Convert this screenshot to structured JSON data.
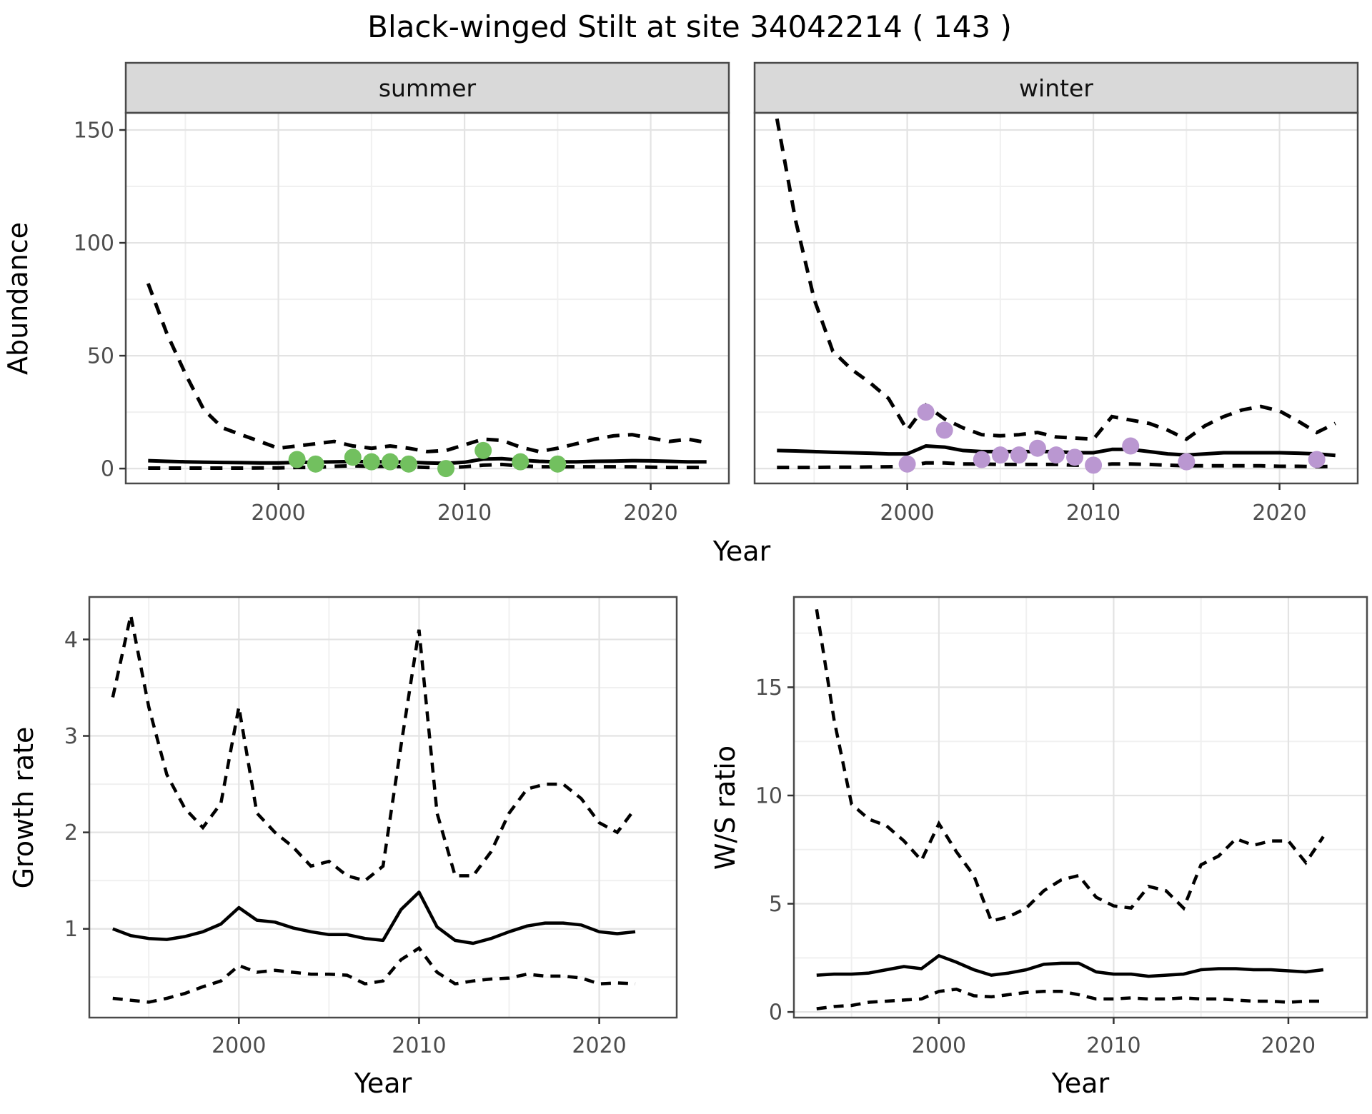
{
  "title": "Black-winged Stilt at site 34042214 ( 143 )",
  "colors": {
    "summer_points": "#72C05F",
    "winter_points": "#BA97D1",
    "line": "#000000",
    "strip_bg": "#D9D9D9",
    "panel_border": "#4A4A4A",
    "grid_major": "#E3E3E3",
    "grid_minor": "#F0F0F0",
    "tick_mark": "#333333",
    "tick_label": "#4D4D4D"
  },
  "chart_data": [
    {
      "id": "abundance",
      "type": "line",
      "xlabel": "Year",
      "ylabel": "Abundance",
      "legend_position": "none",
      "grid": true,
      "xlim": [
        1991.8,
        2024.2
      ],
      "ylim": [
        -6.6,
        157.6
      ],
      "xticks": [
        2000,
        2010,
        2020
      ],
      "xminor": [
        1995,
        2005,
        2015
      ],
      "yticks": [
        0,
        50,
        100,
        150
      ],
      "yminor": [
        25,
        75,
        125
      ],
      "x": [
        1993,
        1994,
        1995,
        1996,
        1997,
        1998,
        1999,
        2000,
        2001,
        2002,
        2003,
        2004,
        2005,
        2006,
        2007,
        2008,
        2009,
        2010,
        2011,
        2012,
        2013,
        2014,
        2015,
        2016,
        2017,
        2018,
        2019,
        2020,
        2021,
        2022,
        2023
      ],
      "facets": [
        {
          "label": "summer",
          "series": {
            "upper_ci": [
              82,
              60,
              42,
              26,
              18,
              15,
              12,
              9,
              10,
              11,
              12,
              10,
              9,
              10,
              9,
              7.5,
              8,
              10.5,
              13,
              12.5,
              9.5,
              7.5,
              9,
              11,
              13,
              14.5,
              15,
              13.5,
              12,
              13,
              11.5
            ],
            "median": [
              3.5,
              3.2,
              3,
              2.8,
              2.7,
              2.6,
              2.5,
              2.5,
              2.7,
              2.8,
              3,
              3.1,
              3,
              3,
              2.8,
              2.5,
              2.3,
              2.8,
              4.2,
              4.4,
              3.7,
              3.2,
              3,
              3,
              3.2,
              3.3,
              3.5,
              3.4,
              3.2,
              3,
              3
            ],
            "lower_ci": [
              0.2,
              0.2,
              0.2,
              0.2,
              0.2,
              0.2,
              0.3,
              0.3,
              0.5,
              0.5,
              1,
              1.2,
              1,
              1,
              0.8,
              0.5,
              0.3,
              0.8,
              1.5,
              1.8,
              1.2,
              0.8,
              0.8,
              0.8,
              0.8,
              0.8,
              0.8,
              0.6,
              0.5,
              0.5,
              0.5
            ]
          },
          "points": {
            "color_key": "summer_points",
            "x": [
              2001,
              2002,
              2004,
              2005,
              2006,
              2007,
              2009,
              2011,
              2013,
              2015
            ],
            "y": [
              4,
              2,
              5,
              3,
              3,
              2,
              0,
              8,
              3,
              2
            ]
          }
        },
        {
          "label": "winter",
          "series": {
            "upper_ci": [
              155,
              110,
              75,
              52,
              44,
              38,
              31,
              17,
              28,
              22,
              18,
              15,
              14.5,
              15,
              16,
              14,
              13.5,
              13,
              23,
              21.5,
              20,
              17,
              13,
              19,
              23,
              26,
              27.5,
              25.5,
              21,
              16,
              20
            ],
            "median": [
              8,
              7.8,
              7.5,
              7.2,
              7,
              6.8,
              6.5,
              6.5,
              10,
              9.5,
              8,
              7.5,
              7.5,
              7.5,
              7.5,
              7.5,
              7,
              7,
              8.5,
              8.5,
              7.5,
              6.5,
              6,
              6.5,
              7,
              7,
              7,
              7,
              6.8,
              6.5,
              5.8
            ],
            "lower_ci": [
              0.5,
              0.5,
              0.5,
              0.6,
              0.6,
              0.7,
              0.8,
              1,
              2.5,
              2.5,
              2,
              2,
              1.8,
              1.8,
              1.8,
              1.8,
              1.5,
              1.5,
              2,
              2,
              1.8,
              1.5,
              1.2,
              1.2,
              1.2,
              1.2,
              1.2,
              1,
              1,
              0.8,
              1
            ]
          },
          "points": {
            "color_key": "winter_points",
            "x": [
              2000,
              2001,
              2002,
              2004,
              2005,
              2006,
              2007,
              2008,
              2009,
              2010,
              2012,
              2015,
              2022
            ],
            "y": [
              2,
              25,
              17,
              4,
              6,
              6,
              9,
              6,
              5,
              1.5,
              10,
              3,
              4
            ]
          }
        }
      ]
    },
    {
      "id": "growth_rate",
      "type": "line",
      "xlabel": "Year",
      "ylabel": "Growth rate",
      "legend_position": "none",
      "grid": true,
      "xlim": [
        1991.7,
        2024.3
      ],
      "ylim": [
        0.08,
        4.44
      ],
      "xticks": [
        2000,
        2010,
        2020
      ],
      "xminor": [
        1995,
        2005,
        2015
      ],
      "yticks": [
        1,
        2,
        3,
        4
      ],
      "yminor": [
        0.5,
        1.5,
        2.5,
        3.5
      ],
      "x": [
        1993,
        1994,
        1995,
        1996,
        1997,
        1998,
        1999,
        2000,
        2001,
        2002,
        2003,
        2004,
        2005,
        2006,
        2007,
        2008,
        2009,
        2010,
        2011,
        2012,
        2013,
        2014,
        2015,
        2016,
        2017,
        2018,
        2019,
        2020,
        2021,
        2022
      ],
      "series": {
        "upper_ci": [
          3.4,
          4.25,
          3.3,
          2.6,
          2.25,
          2.05,
          2.3,
          3.3,
          2.2,
          2.0,
          1.85,
          1.65,
          1.7,
          1.55,
          1.5,
          1.65,
          2.9,
          4.1,
          2.2,
          1.55,
          1.55,
          1.8,
          2.2,
          2.45,
          2.5,
          2.5,
          2.35,
          2.1,
          2.0,
          2.25
        ],
        "median": [
          1.0,
          0.93,
          0.9,
          0.89,
          0.92,
          0.97,
          1.05,
          1.22,
          1.09,
          1.07,
          1.01,
          0.97,
          0.94,
          0.94,
          0.9,
          0.88,
          1.2,
          1.38,
          1.02,
          0.88,
          0.85,
          0.9,
          0.97,
          1.03,
          1.06,
          1.06,
          1.04,
          0.97,
          0.95,
          0.97
        ],
        "lower_ci": [
          0.28,
          0.26,
          0.24,
          0.28,
          0.33,
          0.4,
          0.46,
          0.62,
          0.55,
          0.57,
          0.55,
          0.53,
          0.53,
          0.52,
          0.43,
          0.46,
          0.68,
          0.8,
          0.55,
          0.43,
          0.46,
          0.48,
          0.49,
          0.53,
          0.51,
          0.51,
          0.49,
          0.43,
          0.44,
          0.43
        ]
      }
    },
    {
      "id": "ws_ratio",
      "type": "line",
      "xlabel": "Year",
      "ylabel": "W/S ratio",
      "legend_position": "none",
      "grid": true,
      "xlim": [
        1991.7,
        2024.5
      ],
      "ylim": [
        -0.26,
        19.17
      ],
      "xticks": [
        2000,
        2010,
        2020
      ],
      "xminor": [
        1995,
        2005,
        2015
      ],
      "yticks": [
        0,
        5,
        10,
        15
      ],
      "yminor": [
        2.5,
        7.5,
        12.5,
        17.5
      ],
      "x": [
        1993,
        1994,
        1995,
        1996,
        1997,
        1998,
        1999,
        2000,
        2001,
        2002,
        2003,
        2004,
        2005,
        2006,
        2007,
        2008,
        2009,
        2010,
        2011,
        2012,
        2013,
        2014,
        2015,
        2016,
        2017,
        2018,
        2019,
        2020,
        2021,
        2022
      ],
      "series": {
        "upper_ci": [
          18.6,
          13.5,
          9.6,
          8.9,
          8.6,
          7.9,
          7.0,
          8.7,
          7.4,
          6.3,
          4.2,
          4.4,
          4.8,
          5.6,
          6.1,
          6.3,
          5.3,
          4.9,
          4.8,
          5.8,
          5.6,
          4.8,
          6.8,
          7.2,
          8.0,
          7.7,
          7.9,
          7.9,
          6.9,
          8.1
        ],
        "median": [
          1.7,
          1.75,
          1.75,
          1.8,
          1.95,
          2.1,
          2.0,
          2.6,
          2.3,
          1.95,
          1.7,
          1.8,
          1.95,
          2.2,
          2.25,
          2.25,
          1.85,
          1.75,
          1.75,
          1.65,
          1.7,
          1.75,
          1.95,
          2.0,
          2.0,
          1.95,
          1.95,
          1.9,
          1.85,
          1.95
        ],
        "lower_ci": [
          0.15,
          0.25,
          0.3,
          0.45,
          0.5,
          0.55,
          0.6,
          0.95,
          1.05,
          0.75,
          0.7,
          0.8,
          0.9,
          0.95,
          0.95,
          0.8,
          0.6,
          0.6,
          0.65,
          0.6,
          0.6,
          0.65,
          0.6,
          0.6,
          0.55,
          0.5,
          0.5,
          0.45,
          0.5,
          0.5
        ]
      }
    }
  ]
}
